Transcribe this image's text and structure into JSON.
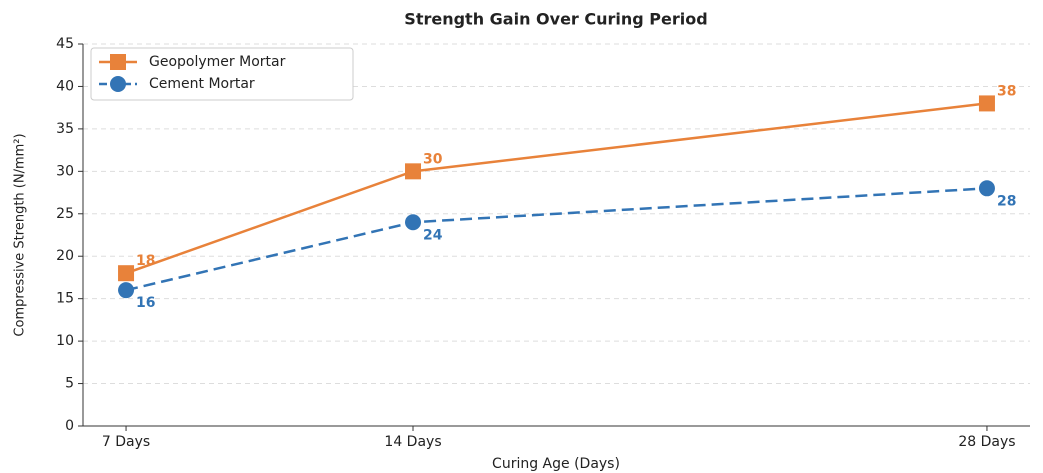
{
  "chart_data": {
    "type": "line",
    "title": "Strength Gain Over Curing Period",
    "x_label": "Curing Age (Days)",
    "y_label": "Compressive Strength (N/mm²)",
    "x": [
      7,
      14,
      28
    ],
    "xlim": [
      5.95,
      29.05
    ],
    "xticks": [
      {
        "value": 7,
        "label": "7 Days"
      },
      {
        "value": 14,
        "label": "14 Days"
      },
      {
        "value": 28,
        "label": "28 Days"
      }
    ],
    "ylim": [
      0,
      45
    ],
    "yticks": [
      0,
      5,
      10,
      15,
      20,
      25,
      30,
      35,
      40,
      45
    ],
    "grid": true,
    "legend": "upper left",
    "series": [
      {
        "name": "Geopolymer Mortar",
        "color": "#e8823a",
        "marker": "square",
        "linestyle": "solid",
        "values": [
          18,
          30,
          38
        ]
      },
      {
        "name": "Cement Mortar",
        "color": "#3274b5",
        "marker": "circle",
        "linestyle": "dashed",
        "values": [
          16,
          24,
          28
        ]
      }
    ]
  }
}
